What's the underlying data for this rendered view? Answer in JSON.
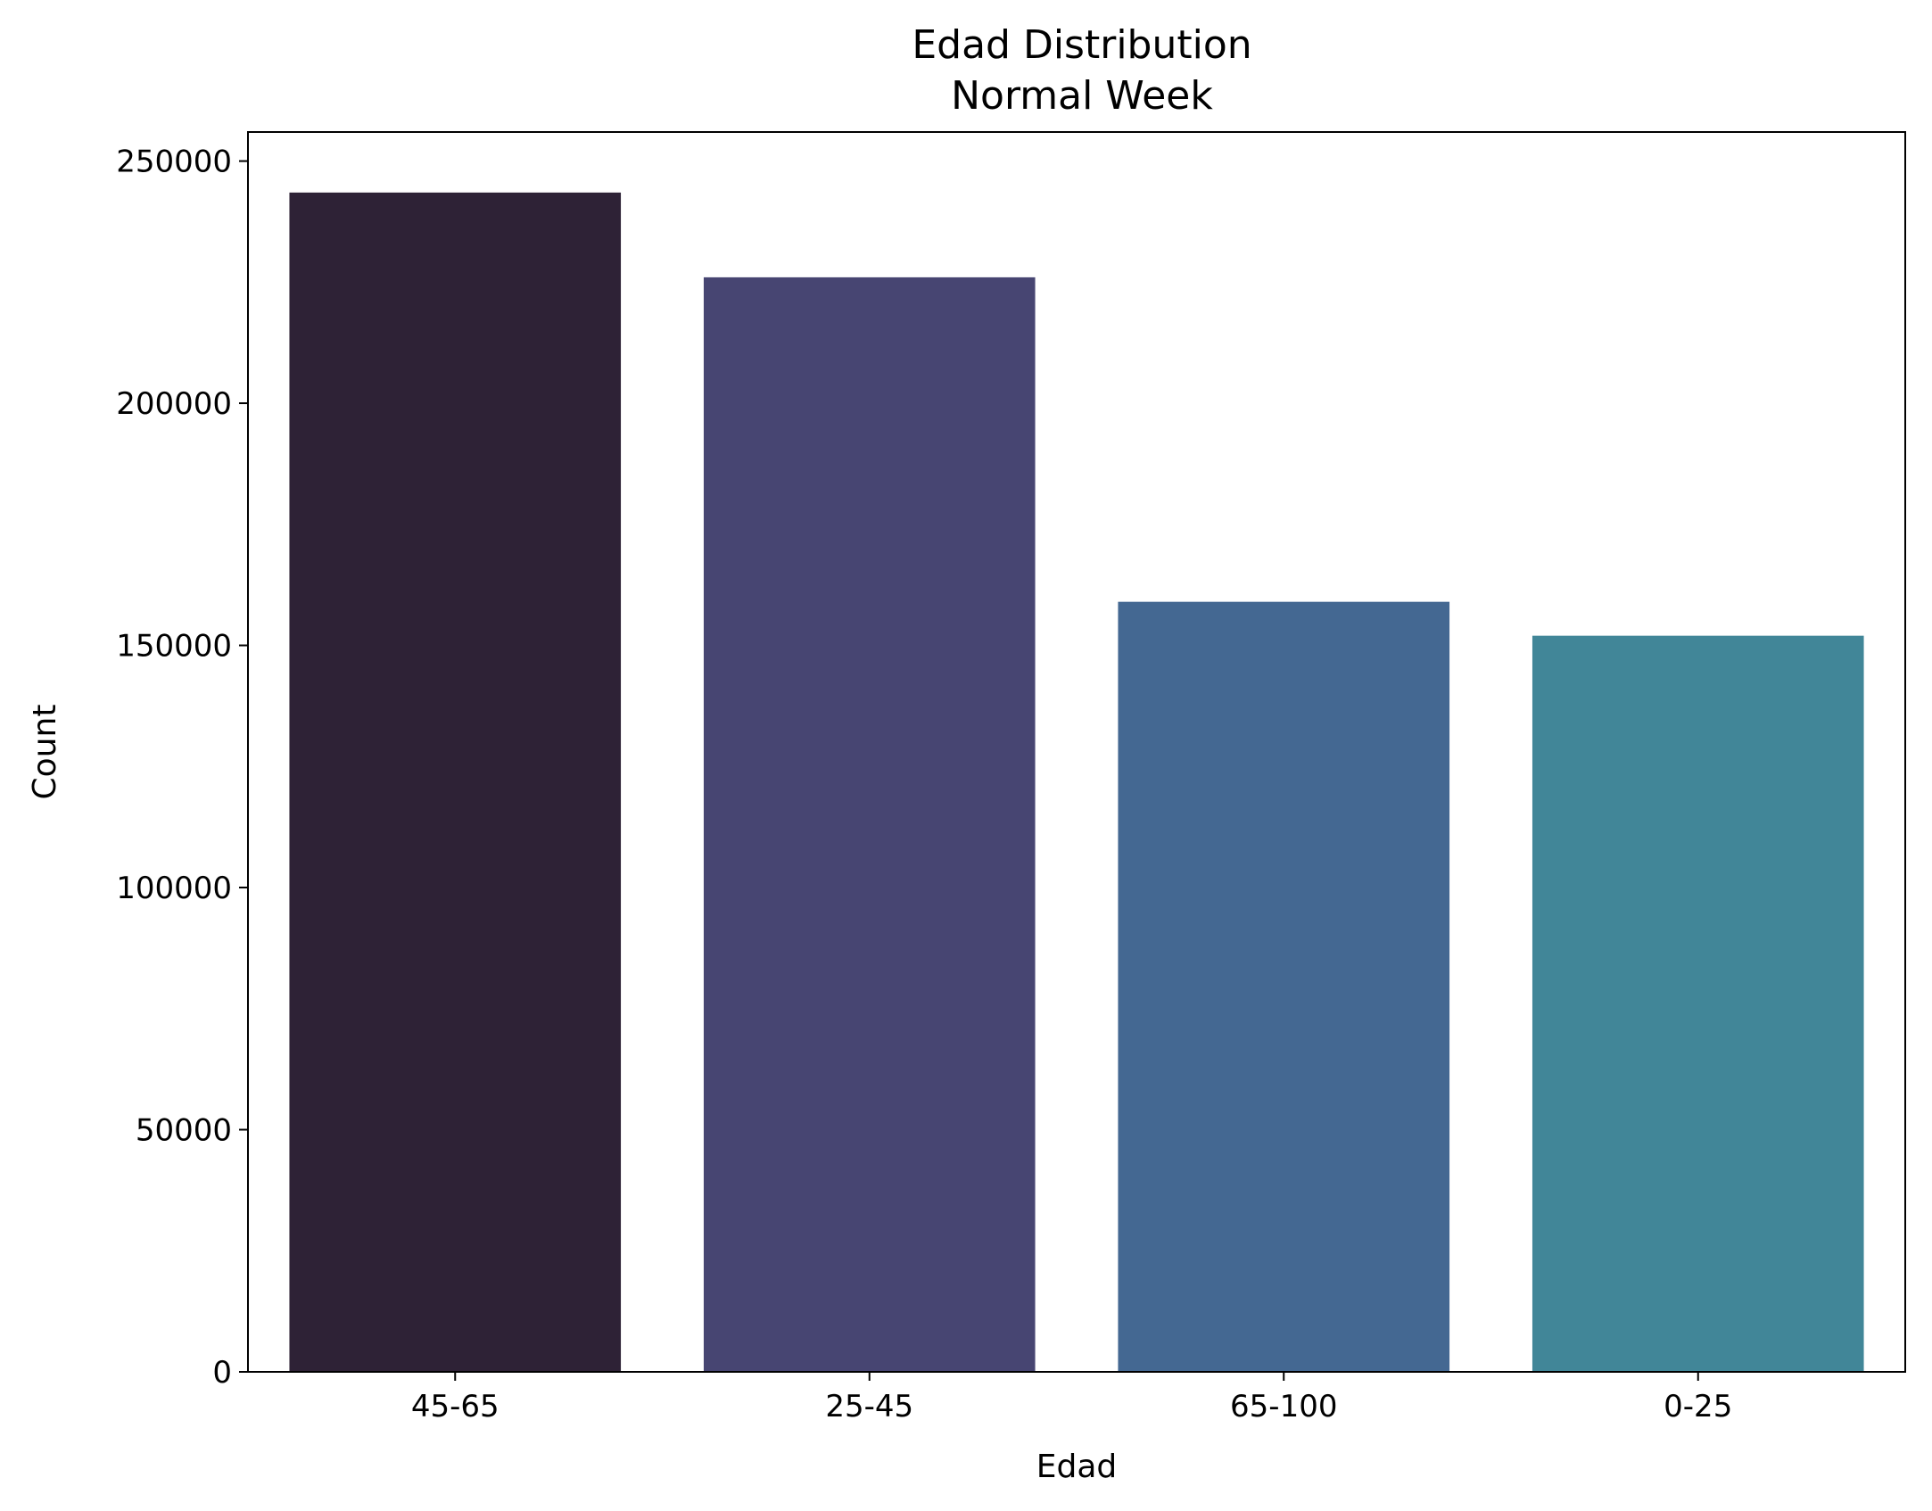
{
  "chart_data": {
    "type": "bar",
    "title": "Edad Distribution",
    "subtitle": "Normal Week",
    "xlabel": "Edad",
    "ylabel": "Count",
    "categories": [
      "45-65",
      "25-45",
      "65-100",
      "0-25"
    ],
    "values": [
      243500,
      226000,
      159000,
      152000
    ],
    "colors": [
      "#2e2236",
      "#474572",
      "#446892",
      "#418698"
    ],
    "ylim": [
      0,
      256000
    ],
    "yticks": [
      0,
      50000,
      100000,
      150000,
      200000,
      250000
    ],
    "grid": false,
    "legend": "none"
  }
}
